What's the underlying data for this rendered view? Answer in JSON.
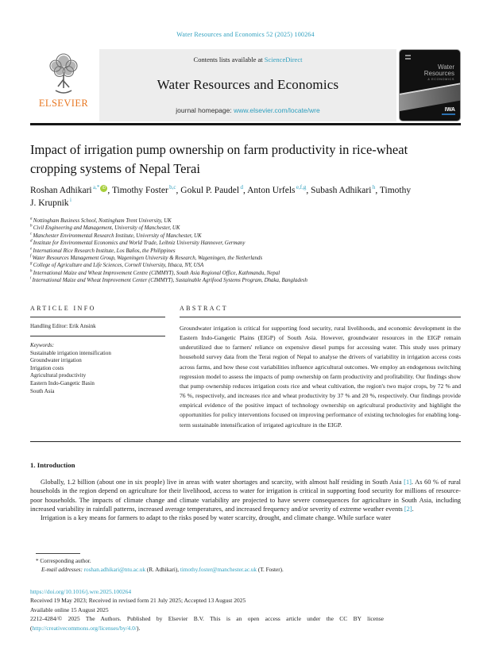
{
  "citation": "Water Resources and Economics 52 (2025) 100264",
  "header": {
    "contents_prefix": "Contents lists available at ",
    "contents_link": "ScienceDirect",
    "journal_title": "Water Resources and Economics",
    "homepage_prefix": "journal homepage: ",
    "homepage_link": "www.elsevier.com/locate/wre",
    "publisher": "ELSEVIER",
    "cover": {
      "line1": "Water",
      "line2": "Resources",
      "line3": "& ECONOMICS",
      "logo": "IWA"
    }
  },
  "article": {
    "title": "Impact of irrigation pump ownership on farm productivity in rice-wheat cropping systems of Nepal Terai",
    "authors": [
      {
        "name": "Roshan Adhikari",
        "sup": "a,*",
        "orcid": true
      },
      {
        "name": "Timothy Foster",
        "sup": "b,c"
      },
      {
        "name": "Gokul P. Paudel",
        "sup": "d"
      },
      {
        "name": "Anton Urfels",
        "sup": "e,f,g"
      },
      {
        "name": "Subash Adhikari",
        "sup": "h"
      },
      {
        "name": "Timothy J. Krupnik",
        "sup": "i"
      }
    ],
    "affiliations": [
      {
        "sup": "a",
        "text": "Nottingham Business School, Nottingham Trent University, UK"
      },
      {
        "sup": "b",
        "text": "Civil Engineering and Management, University of Manchester, UK"
      },
      {
        "sup": "c",
        "text": "Manchester Environmental Research Institute, University of Manchester, UK"
      },
      {
        "sup": "d",
        "text": "Institute for Environmental Economics and World Trade, Leibniz University Hannover, Germany"
      },
      {
        "sup": "e",
        "text": "International Rice Research Institute, Los Baños, the Philippines"
      },
      {
        "sup": "f",
        "text": "Water Resources Management Group, Wageningen University & Research, Wageningen, the Netherlands"
      },
      {
        "sup": "g",
        "text": "College of Agriculture and Life Sciences, Cornell University, Ithaca, NY, USA"
      },
      {
        "sup": "h",
        "text": "International Maize and Wheat Improvement Centre (CIMMYT), South Asia Regional Office, Kathmandu, Nepal"
      },
      {
        "sup": "i",
        "text": "International Maize and Wheat Improvement Center (CIMMYT), Sustainable Agrifood Systems Program, Dhaka, Bangladesh"
      }
    ]
  },
  "article_info": {
    "heading": "ARTICLE INFO",
    "handling_editor": "Handling Editor: Erik Ansink",
    "keywords_label": "Keywords:",
    "keywords": [
      "Sustainable irrigation intensification",
      "Groundwater irrigation",
      "Irrigation costs",
      "Agricultural productivity",
      "Eastern Indo-Gangetic Basin",
      "South Asia"
    ]
  },
  "abstract": {
    "heading": "ABSTRACT",
    "text": "Groundwater irrigation is critical for supporting food security, rural livelihoods, and economic development in the Eastern Indo-Gangetic Plains (EIGP) of South Asia. However, groundwater resources in the EIGP remain underutilized due to farmers' reliance on expensive diesel pumps for accessing water. This study uses primary household survey data from the Terai region of Nepal to analyse the drivers of variability in irrigation access costs across farms, and how these cost variabilities influence agricultural outcomes. We employ an endogenous switching regression model to assess the impacts of pump ownership on farm productivity and profitability. Our findings show that pump ownership reduces irrigation costs rice and wheat cultivation, the region's two major crops, by 72 % and 76 %, respectively, and increases rice and wheat productivity by 37 % and 20 %, respectively. Our findings provide empirical evidence of the positive impact of technology ownership on agricultural productivity and highlight the opportunities for policy interventions focused on improving performance of existing technologies for enabling long-term sustainable intensification of irrigated agriculture in the EIGP."
  },
  "introduction": {
    "heading": "1. Introduction",
    "para1": [
      {
        "text": "Globally, 1.2 billion (about one in six people) live in areas with water shortages and scarcity, with almost half residing in South Asia ",
        "link": false
      },
      {
        "text": "[1]",
        "link": true
      },
      {
        "text": ". As 60 % of rural households in the region depend on agriculture for their livelihood, access to water for irrigation is critical in supporting food security for millions of resource-poor households. The impacts of climate change and climate variability are projected to have severe consequences for agriculture in South Asia, including increased variability in rainfall patterns, increased average temperatures, and increased frequency and/or severity of extreme weather events ",
        "link": false
      },
      {
        "text": "[2]",
        "link": true
      },
      {
        "text": ".",
        "link": false
      }
    ],
    "para2": "Irrigation is a key means for farmers to adapt to the risks posed by water scarcity, drought, and climate change. While surface water"
  },
  "footnotes": {
    "corresponding": "* Corresponding author.",
    "email_label": "E-mail addresses:",
    "email1": "roshan.adhikari@ntu.ac.uk",
    "email1_suffix": " (R. Adhikari), ",
    "email2": "timothy.foster@manchester.ac.uk",
    "email2_suffix": " (T. Foster)."
  },
  "footer": {
    "doi": "https://doi.org/10.1016/j.wre.2025.100264",
    "received": "Received 19 May 2023; Received in revised form 21 July 2025; Accepted 13 August 2025",
    "available": "Available online 15 August 2025",
    "copyright": "2212-4284/© 2025 The Authors. Published by Elsevier B.V. This is an open access article under the CC BY license",
    "license_open": "(",
    "license_url": "http://creativecommons.org/licenses/by/4.0/",
    "license_close": ")."
  },
  "colors": {
    "link_teal": "#2e9fbe",
    "elsevier_orange": "#e87722",
    "banner_gray": "#ededed",
    "orcid_green": "#a6ce39"
  }
}
